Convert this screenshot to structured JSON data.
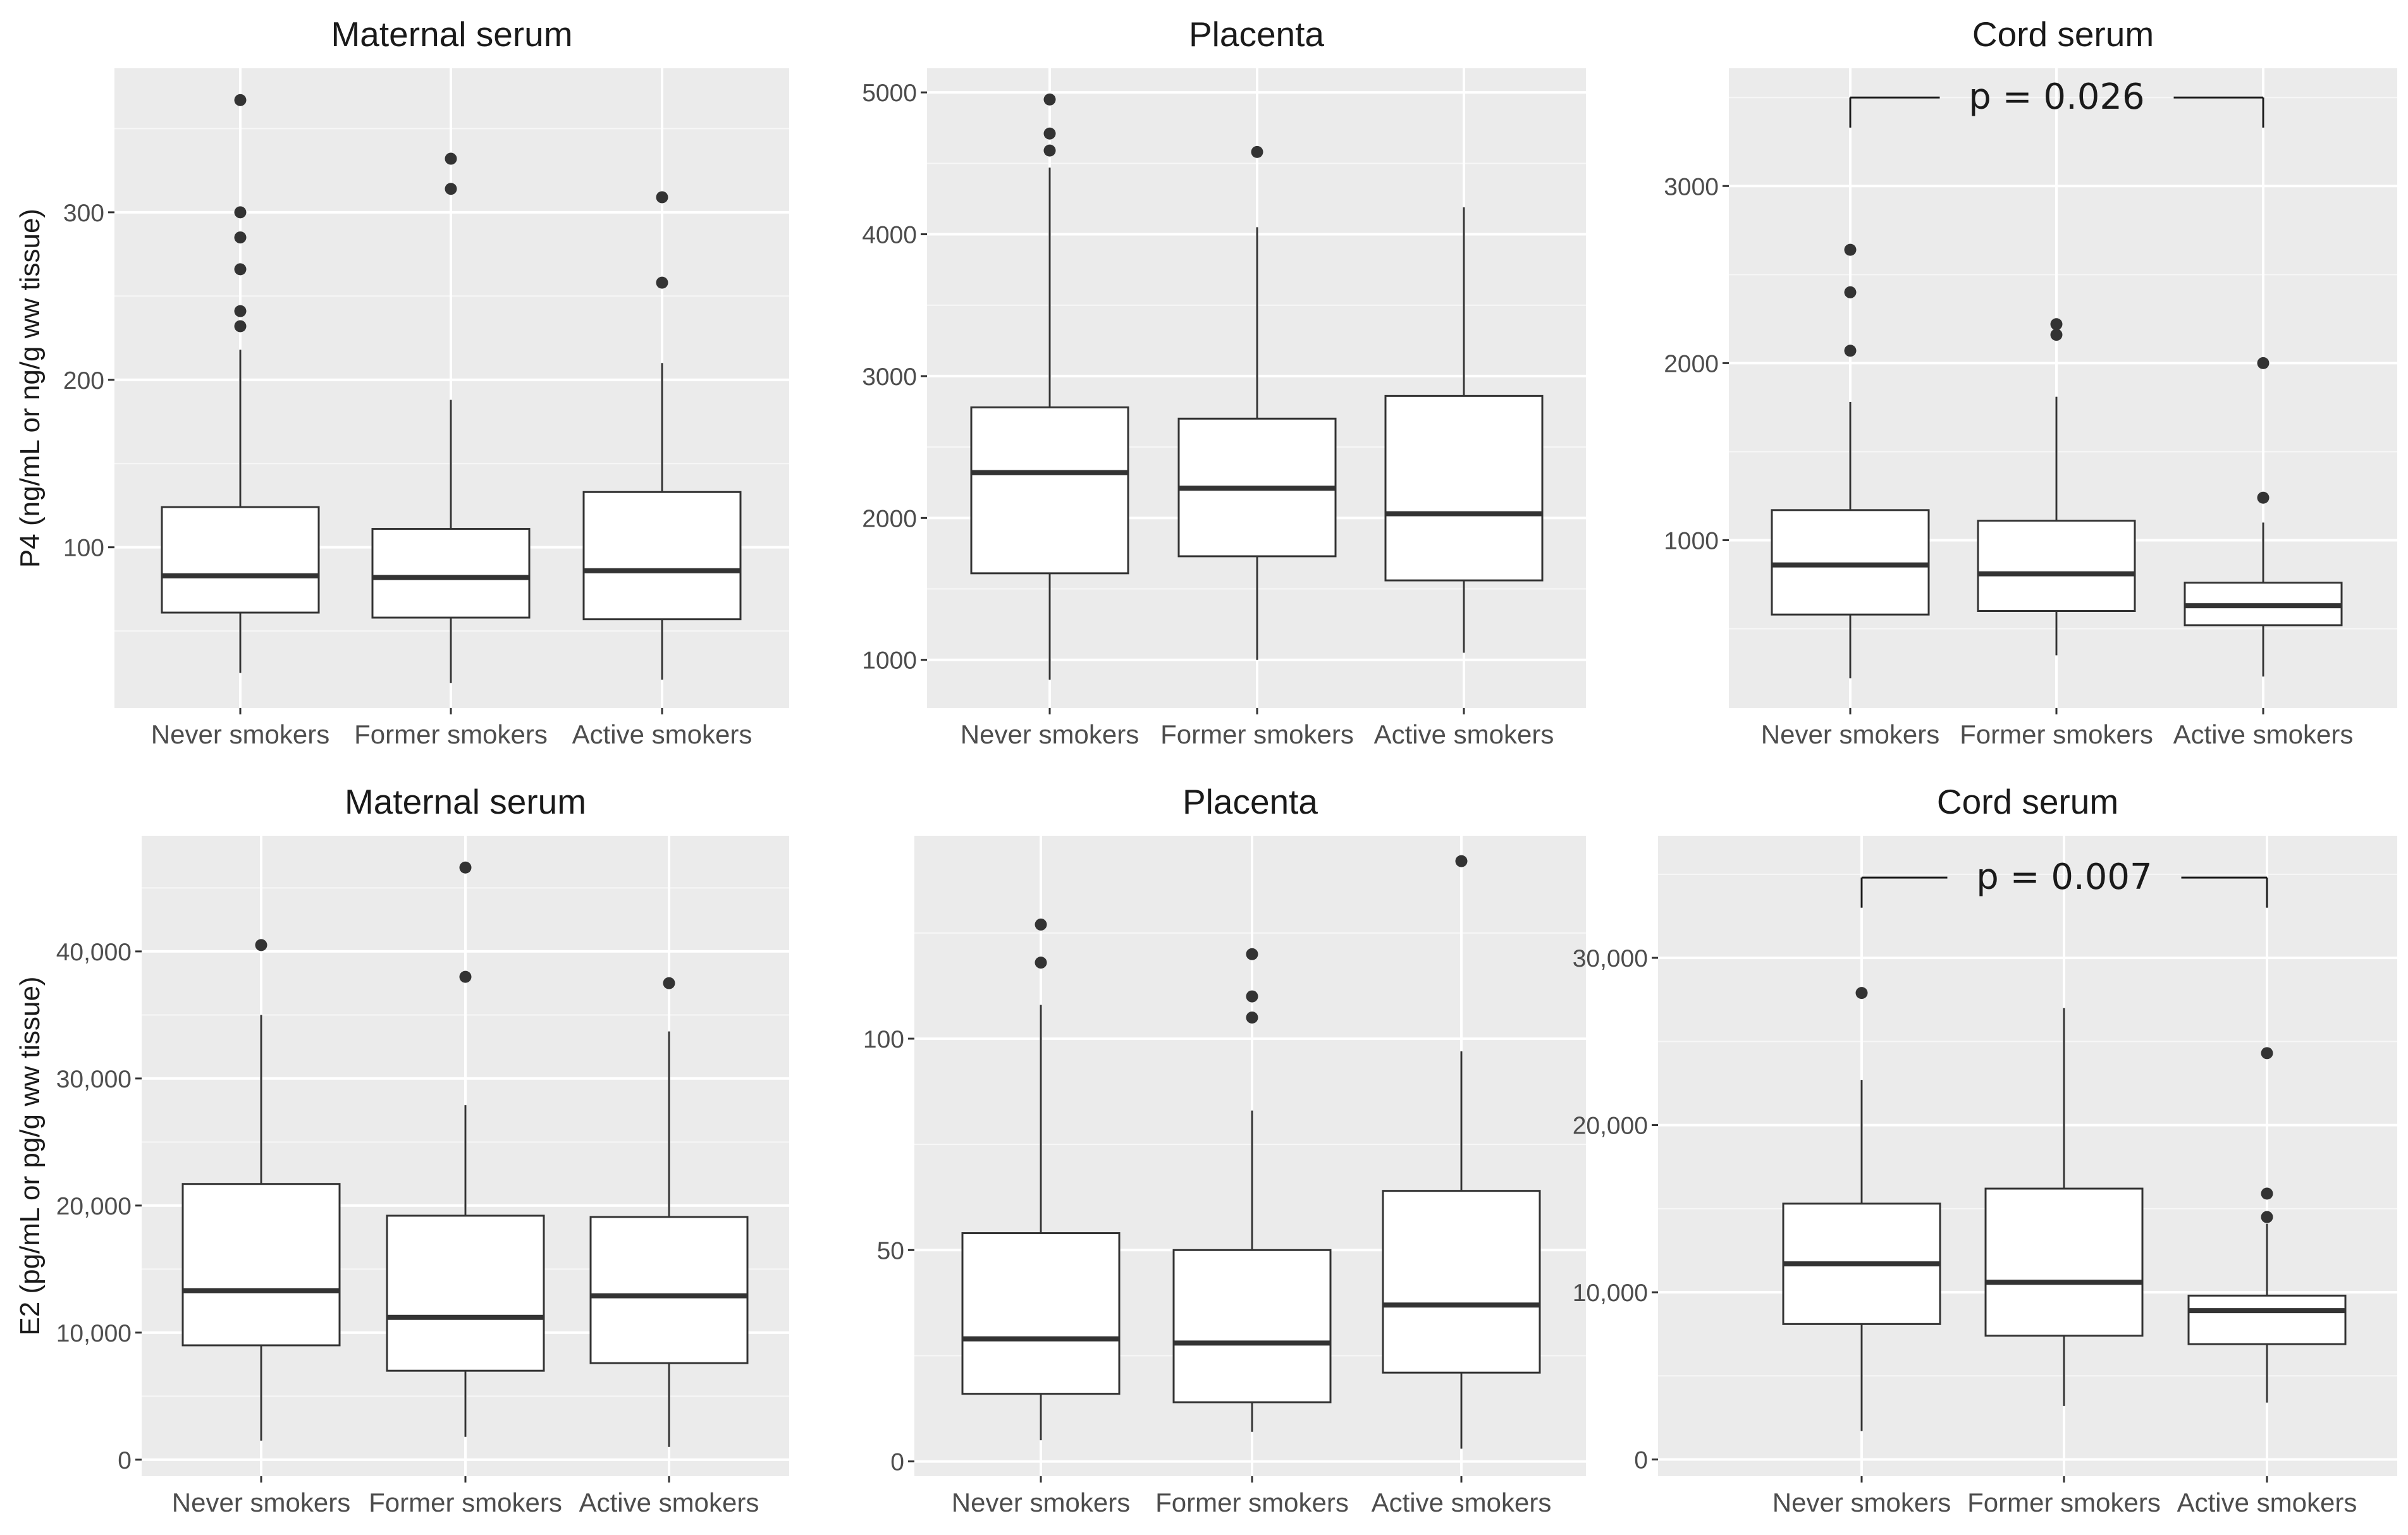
{
  "chart_data": [
    {
      "type": "box",
      "title": "Maternal serum",
      "ylabel": "P4 (ng/mL or ng/g ww tissue)",
      "ylim": [
        4,
        386
      ],
      "yticks": [
        100,
        200,
        300
      ],
      "yticklabels": [
        "100",
        "200",
        "300"
      ],
      "categories": [
        "Never smokers",
        "Former smokers",
        "Active smokers"
      ],
      "boxes": [
        {
          "whisker_low": 25,
          "q1": 61,
          "median": 83,
          "q3": 124,
          "whisker_high": 218,
          "outliers": [
            367,
            300,
            285,
            266,
            241,
            232
          ]
        },
        {
          "whisker_low": 19,
          "q1": 58,
          "median": 82,
          "q3": 111,
          "whisker_high": 188,
          "outliers": [
            332,
            314
          ]
        },
        {
          "whisker_low": 21,
          "q1": 57,
          "median": 86,
          "q3": 133,
          "whisker_high": 210,
          "outliers": [
            309,
            258
          ]
        }
      ]
    },
    {
      "type": "box",
      "title": "Placenta",
      "ylabel": "",
      "ylim": [
        660,
        5170
      ],
      "yticks": [
        1000,
        2000,
        3000,
        4000,
        5000
      ],
      "yticklabels": [
        "1000",
        "2000",
        "3000",
        "4000",
        "5000"
      ],
      "categories": [
        "Never smokers",
        "Former smokers",
        "Active smokers"
      ],
      "boxes": [
        {
          "whisker_low": 860,
          "q1": 1610,
          "median": 2320,
          "q3": 2780,
          "whisker_high": 4470,
          "outliers": [
            4950,
            4710,
            4590
          ]
        },
        {
          "whisker_low": 1000,
          "q1": 1730,
          "median": 2210,
          "q3": 2700,
          "whisker_high": 4050,
          "outliers": [
            4580
          ]
        },
        {
          "whisker_low": 1050,
          "q1": 1560,
          "median": 2030,
          "q3": 2860,
          "whisker_high": 4190,
          "outliers": []
        }
      ]
    },
    {
      "type": "box",
      "title": "Cord serum",
      "ylabel": "",
      "ylim": [
        52,
        3665
      ],
      "yticks": [
        1000,
        2000,
        3000
      ],
      "yticklabels": [
        "1000",
        "2000",
        "3000"
      ],
      "categories": [
        "Never smokers",
        "Former smokers",
        "Active smokers"
      ],
      "boxes": [
        {
          "whisker_low": 220,
          "q1": 580,
          "median": 860,
          "q3": 1170,
          "whisker_high": 1780,
          "outliers": [
            2640,
            2400,
            2070
          ]
        },
        {
          "whisker_low": 350,
          "q1": 600,
          "median": 810,
          "q3": 1110,
          "whisker_high": 1810,
          "outliers": [
            2220,
            2160
          ]
        },
        {
          "whisker_low": 230,
          "q1": 520,
          "median": 630,
          "q3": 760,
          "whisker_high": 1100,
          "outliers": [
            2000,
            1240
          ]
        }
      ],
      "annotation": {
        "text": "p = 0.026",
        "y": 3330,
        "y_top": 3500,
        "between": [
          "Never smokers",
          "Active smokers"
        ]
      }
    },
    {
      "type": "box",
      "title": "Maternal serum",
      "ylabel": "E2 (pg/mL or pg/g ww tissue)",
      "ylim": [
        -1300,
        49100
      ],
      "yticks": [
        0,
        10000,
        20000,
        30000,
        40000
      ],
      "yticklabels": [
        "0",
        "10,000",
        "20,000",
        "30,000",
        "40,000"
      ],
      "categories": [
        "Never smokers",
        "Former smokers",
        "Active smokers"
      ],
      "boxes": [
        {
          "whisker_low": 1500,
          "q1": 9000,
          "median": 13300,
          "q3": 21700,
          "whisker_high": 35000,
          "outliers": [
            40500
          ]
        },
        {
          "whisker_low": 1800,
          "q1": 7000,
          "median": 11200,
          "q3": 19200,
          "whisker_high": 27900,
          "outliers": [
            46600,
            38000
          ]
        },
        {
          "whisker_low": 1000,
          "q1": 7600,
          "median": 12900,
          "q3": 19100,
          "whisker_high": 33700,
          "outliers": [
            37500
          ]
        }
      ]
    },
    {
      "type": "box",
      "title": "Placenta",
      "ylabel": "",
      "ylim": [
        -3.5,
        148
      ],
      "yticks": [
        0,
        50,
        100
      ],
      "yticklabels": [
        "0",
        "50",
        "100"
      ],
      "categories": [
        "Never smokers",
        "Former smokers",
        "Active smokers"
      ],
      "boxes": [
        {
          "whisker_low": 5,
          "q1": 16,
          "median": 29,
          "q3": 54,
          "whisker_high": 108,
          "outliers": [
            127,
            118
          ]
        },
        {
          "whisker_low": 7,
          "q1": 14,
          "median": 28,
          "q3": 50,
          "whisker_high": 83,
          "outliers": [
            120,
            110,
            105
          ]
        },
        {
          "whisker_low": 3,
          "q1": 21,
          "median": 37,
          "q3": 64,
          "whisker_high": 97,
          "outliers": [
            142
          ]
        }
      ]
    },
    {
      "type": "box",
      "title": "Cord serum",
      "ylabel": "",
      "ylim": [
        -1000,
        37300
      ],
      "yticks": [
        0,
        10000,
        20000,
        30000
      ],
      "yticklabels": [
        "0",
        "10,000",
        "20,000",
        "30,000"
      ],
      "categories": [
        "Never smokers",
        "Former smokers",
        "Active smokers"
      ],
      "boxes": [
        {
          "whisker_low": 1700,
          "q1": 8100,
          "median": 11700,
          "q3": 15300,
          "whisker_high": 22700,
          "outliers": [
            27900
          ]
        },
        {
          "whisker_low": 3200,
          "q1": 7400,
          "median": 10600,
          "q3": 16200,
          "whisker_high": 27000,
          "outliers": []
        },
        {
          "whisker_low": 3400,
          "q1": 6900,
          "median": 8900,
          "q3": 9800,
          "whisker_high": 14100,
          "outliers": [
            24300,
            15900,
            14500
          ]
        }
      ],
      "annotation": {
        "text": "p = 0.007",
        "y": 33000,
        "y_top": 34800,
        "between": [
          "Never smokers",
          "Active smokers"
        ]
      }
    }
  ]
}
